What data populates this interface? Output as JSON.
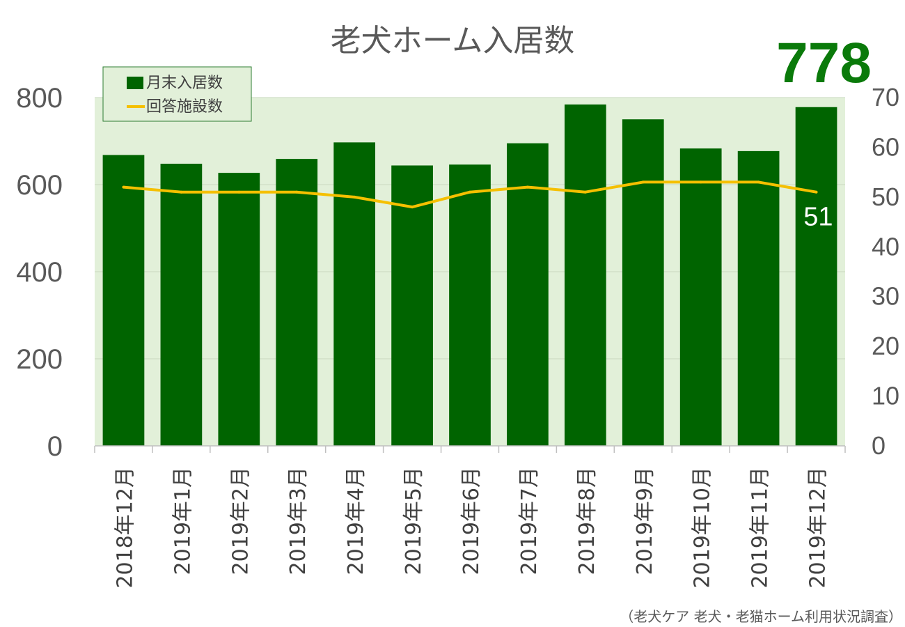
{
  "chart_data": {
    "type": "bar",
    "title": "老犬ホーム入居数",
    "highlight_value": "778",
    "source": "（老犬ケア 老犬・老猫ホーム利用状況調査）",
    "categories": [
      "2018年12月",
      "2019年1月",
      "2019年2月",
      "2019年3月",
      "2019年4月",
      "2019年5月",
      "2019年6月",
      "2019年7月",
      "2019年8月",
      "2019年9月",
      "2019年10月",
      "2019年11月",
      "2019年12月"
    ],
    "series": [
      {
        "name": "月末入居数",
        "type": "bar",
        "axis": "left",
        "color": "#006400",
        "values": [
          668,
          648,
          627,
          659,
          697,
          644,
          646,
          695,
          784,
          750,
          683,
          677,
          778
        ]
      },
      {
        "name": "回答施設数",
        "type": "line",
        "axis": "right",
        "color": "#f5c000",
        "values": [
          52,
          51,
          51,
          51,
          50,
          48,
          51,
          52,
          51,
          53,
          53,
          53,
          51
        ]
      }
    ],
    "left_axis": {
      "ylim": [
        0,
        800
      ],
      "ticks": [
        "0",
        "200",
        "400",
        "600",
        "800"
      ]
    },
    "right_axis": {
      "ylim": [
        0,
        70
      ],
      "ticks": [
        "0",
        "10",
        "20",
        "30",
        "40",
        "50",
        "60",
        "70"
      ]
    },
    "line_end_label": "51",
    "plot_background": "#e2f0d9",
    "gridlines": true,
    "legend_position": "top-left"
  }
}
